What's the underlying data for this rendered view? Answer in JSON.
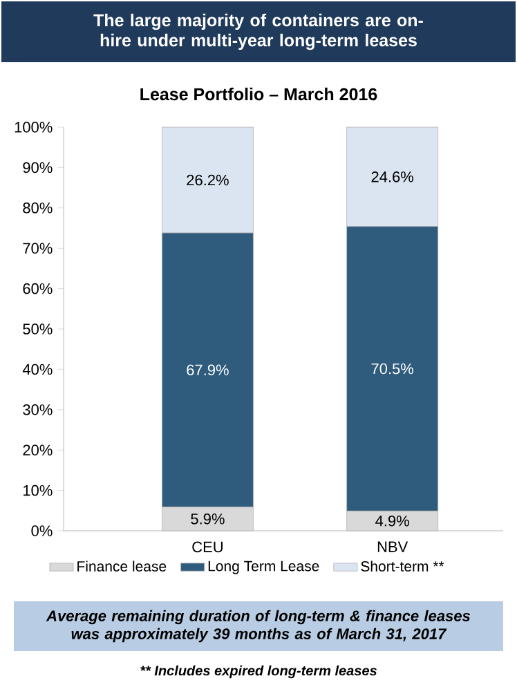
{
  "chart_data": {
    "type": "bar",
    "stacked": true,
    "title": "The large majority of containers are on-hire under multi-year long-term leases",
    "subtitle": "Lease Portfolio – March 2016",
    "categories": [
      "CEU",
      "NBV"
    ],
    "series": [
      {
        "name": "Finance lease",
        "color": "#d9d9d9",
        "values": [
          5.9,
          4.9
        ],
        "value_labels": [
          "5.9%",
          "4.9%"
        ]
      },
      {
        "name": "Long Term Lease",
        "color": "#2f5b7c",
        "values": [
          67.9,
          70.5
        ],
        "value_labels": [
          "67.9%",
          "70.5%"
        ]
      },
      {
        "name": "Short-term **",
        "color": "#dbe5f1",
        "values": [
          26.2,
          24.6
        ],
        "value_labels": [
          "26.2%",
          "24.6%"
        ]
      }
    ],
    "ylim": [
      0,
      100
    ],
    "yticks": [
      {
        "value": 0,
        "label": "0%"
      },
      {
        "value": 10,
        "label": "10%"
      },
      {
        "value": 20,
        "label": "20%"
      },
      {
        "value": 30,
        "label": "30%"
      },
      {
        "value": 40,
        "label": "40%"
      },
      {
        "value": 50,
        "label": "50%"
      },
      {
        "value": 60,
        "label": "60%"
      },
      {
        "value": 70,
        "label": "70%"
      },
      {
        "value": 80,
        "label": "80%"
      },
      {
        "value": 90,
        "label": "90%"
      },
      {
        "value": 100,
        "label": "100%"
      }
    ],
    "legend": "bottom",
    "grid": false,
    "annotations": [
      "Average remaining duration of long-term & finance leases was approximately 39 months as of March 31, 2017",
      "** Includes expired long-term leases"
    ]
  }
}
